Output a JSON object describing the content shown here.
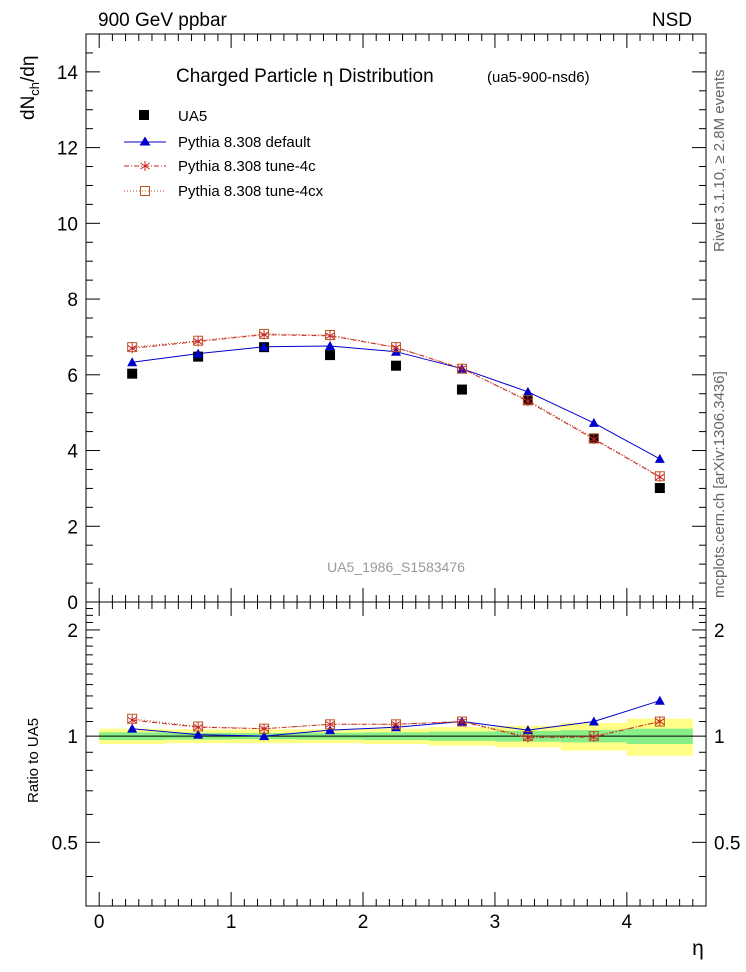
{
  "header": {
    "left": "900 GeV ppbar",
    "right": "NSD"
  },
  "side_labels": {
    "rivet": "Rivet 3.1.10, ≥ 2.8M events",
    "mcplots": "mcplots.cern.ch [arXiv:1306.3436]"
  },
  "chart_data": [
    {
      "type": "scatter",
      "title": "Charged Particle  η Distribution",
      "title_tag": "(ua5-900-nsd6)",
      "watermark": "UA5_1986_S1583476",
      "ylabel_main": "dN",
      "ylabel_sub": "ch",
      "ylabel_tail": "/dη",
      "xlim": [
        -0.1,
        4.6
      ],
      "ylim": [
        0,
        15
      ],
      "yticks": [
        0,
        2,
        4,
        6,
        8,
        10,
        12,
        14
      ],
      "ytick_labels": [
        "0",
        "2",
        "4",
        "6",
        "8",
        "10",
        "12",
        "14"
      ],
      "x": [
        0.25,
        0.75,
        1.25,
        1.75,
        2.25,
        2.75,
        3.25,
        3.75,
        4.25
      ],
      "legend_position": "top-left",
      "series": [
        {
          "name": "UA5",
          "marker": "square",
          "color": "#000000",
          "values": [
            6.03,
            6.48,
            6.73,
            6.52,
            6.24,
            5.61,
            5.33,
            4.32,
            3.01
          ]
        },
        {
          "name": "Pythia 8.308 default",
          "marker": "triangle",
          "color": "#0000cc",
          "values": [
            6.33,
            6.56,
            6.74,
            6.76,
            6.61,
            6.16,
            5.55,
            4.73,
            3.78
          ]
        },
        {
          "name": "Pythia 8.308 tune-4c",
          "marker": "star",
          "color": "#cc2222",
          "values": [
            6.7,
            6.88,
            7.06,
            7.03,
            6.72,
            6.17,
            5.3,
            4.3,
            3.3
          ]
        },
        {
          "name": "Pythia 8.308 tune-4cx",
          "marker": "open-square",
          "color": "#bb5522",
          "values": [
            6.73,
            6.9,
            7.08,
            7.05,
            6.73,
            6.16,
            5.33,
            4.32,
            3.32
          ]
        }
      ]
    },
    {
      "type": "line",
      "ylabel": "Ratio to UA5",
      "xlabel": "η",
      "xlim": [
        -0.1,
        4.6
      ],
      "ylim": [
        0.33,
        2.4
      ],
      "xticks": [
        0,
        1,
        2,
        3,
        4
      ],
      "xtick_labels": [
        "0",
        "1",
        "2",
        "3",
        "4"
      ],
      "yticks": [
        0.5,
        1,
        2
      ],
      "ytick_labels": [
        "0.5",
        "1",
        "2"
      ],
      "x": [
        0.25,
        0.75,
        1.25,
        1.75,
        2.25,
        2.75,
        3.25,
        3.75,
        4.25
      ],
      "bin_edges": [
        0,
        0.5,
        1,
        1.5,
        2,
        2.5,
        3,
        3.5,
        4,
        4.5
      ],
      "band_inner": [
        0.025,
        0.022,
        0.02,
        0.022,
        0.025,
        0.03,
        0.035,
        0.04,
        0.05
      ],
      "band_outer": [
        0.05,
        0.045,
        0.045,
        0.045,
        0.05,
        0.06,
        0.07,
        0.09,
        0.12
      ],
      "series": [
        {
          "name": "Pythia 8.308 default",
          "marker": "triangle",
          "color": "#0000cc",
          "values": [
            1.05,
            1.01,
            1.0,
            1.04,
            1.06,
            1.1,
            1.04,
            1.1,
            1.26
          ]
        },
        {
          "name": "Pythia 8.308 tune-4c",
          "marker": "star",
          "color": "#cc2222",
          "values": [
            1.11,
            1.06,
            1.05,
            1.08,
            1.08,
            1.1,
            0.99,
            0.995,
            1.1
          ]
        },
        {
          "name": "Pythia 8.308 tune-4cx",
          "marker": "open-square",
          "color": "#bb5522",
          "values": [
            1.12,
            1.065,
            1.05,
            1.08,
            1.08,
            1.1,
            1.0,
            1.0,
            1.1
          ]
        }
      ]
    }
  ]
}
